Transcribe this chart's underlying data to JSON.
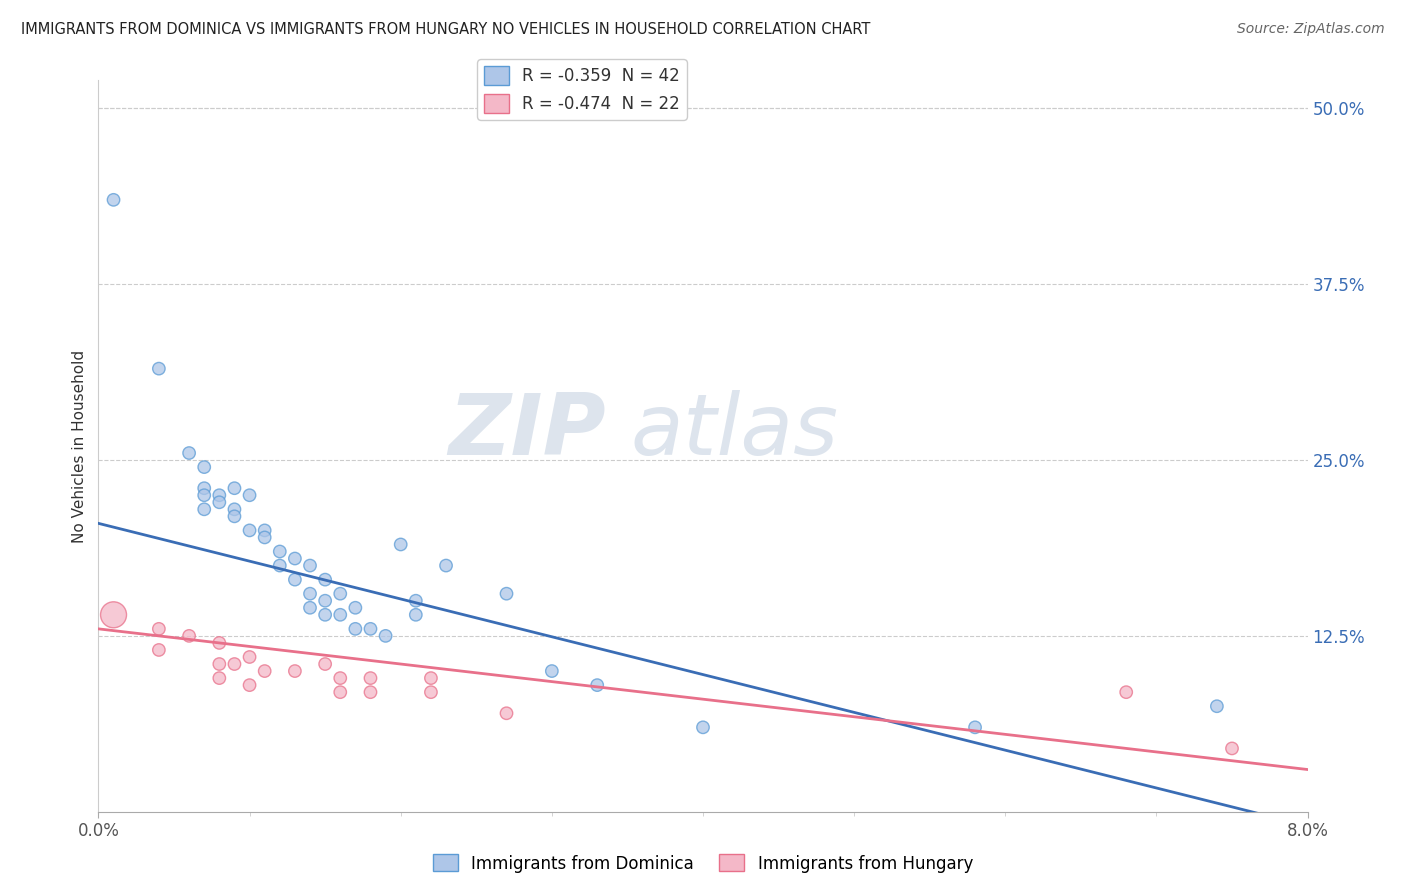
{
  "title": "IMMIGRANTS FROM DOMINICA VS IMMIGRANTS FROM HUNGARY NO VEHICLES IN HOUSEHOLD CORRELATION CHART",
  "source": "Source: ZipAtlas.com",
  "ylabel": "No Vehicles in Household",
  "right_yticks": [
    "50.0%",
    "37.5%",
    "25.0%",
    "12.5%"
  ],
  "right_ytick_vals": [
    0.5,
    0.375,
    0.25,
    0.125
  ],
  "legend1_text": "R = -0.359  N = 42",
  "legend2_text": "R = -0.474  N = 22",
  "dominica_color": "#aec6e8",
  "dominica_edge": "#5b9bd5",
  "hungary_color": "#f4b8c8",
  "hungary_edge": "#e8708a",
  "blue_line_color": "#3a6db5",
  "pink_line_color": "#e8708a",
  "xlim": [
    0.0,
    0.08
  ],
  "ylim": [
    0.0,
    0.52
  ],
  "dominica_x": [
    0.001,
    0.004,
    0.006,
    0.007,
    0.007,
    0.007,
    0.007,
    0.008,
    0.008,
    0.009,
    0.009,
    0.009,
    0.01,
    0.01,
    0.011,
    0.011,
    0.012,
    0.012,
    0.013,
    0.013,
    0.014,
    0.014,
    0.014,
    0.015,
    0.015,
    0.015,
    0.016,
    0.016,
    0.017,
    0.017,
    0.018,
    0.019,
    0.02,
    0.021,
    0.021,
    0.023,
    0.027,
    0.03,
    0.033,
    0.04,
    0.058,
    0.074
  ],
  "dominica_y": [
    0.435,
    0.315,
    0.255,
    0.245,
    0.23,
    0.225,
    0.215,
    0.225,
    0.22,
    0.23,
    0.215,
    0.21,
    0.225,
    0.2,
    0.2,
    0.195,
    0.185,
    0.175,
    0.18,
    0.165,
    0.175,
    0.155,
    0.145,
    0.165,
    0.15,
    0.14,
    0.155,
    0.14,
    0.145,
    0.13,
    0.13,
    0.125,
    0.19,
    0.15,
    0.14,
    0.175,
    0.155,
    0.1,
    0.09,
    0.06,
    0.06,
    0.075
  ],
  "dominica_size": [
    80,
    80,
    80,
    80,
    80,
    80,
    80,
    80,
    80,
    80,
    80,
    80,
    80,
    80,
    80,
    80,
    80,
    80,
    80,
    80,
    80,
    80,
    80,
    80,
    80,
    80,
    80,
    80,
    80,
    80,
    80,
    80,
    80,
    80,
    80,
    80,
    80,
    80,
    80,
    80,
    80,
    80
  ],
  "hungary_x": [
    0.001,
    0.004,
    0.004,
    0.006,
    0.008,
    0.008,
    0.008,
    0.009,
    0.01,
    0.01,
    0.011,
    0.013,
    0.015,
    0.016,
    0.016,
    0.018,
    0.018,
    0.022,
    0.022,
    0.027,
    0.068,
    0.075
  ],
  "hungary_y": [
    0.14,
    0.13,
    0.115,
    0.125,
    0.12,
    0.105,
    0.095,
    0.105,
    0.11,
    0.09,
    0.1,
    0.1,
    0.105,
    0.095,
    0.085,
    0.095,
    0.085,
    0.095,
    0.085,
    0.07,
    0.085,
    0.045
  ],
  "hungary_size": [
    350,
    80,
    80,
    80,
    80,
    80,
    80,
    80,
    80,
    80,
    80,
    80,
    80,
    80,
    80,
    80,
    80,
    80,
    80,
    80,
    80,
    80
  ],
  "blue_line_x": [
    0.0,
    0.08
  ],
  "blue_line_y": [
    0.205,
    -0.01
  ],
  "pink_line_x": [
    0.0,
    0.08
  ],
  "pink_line_y": [
    0.13,
    0.03
  ]
}
